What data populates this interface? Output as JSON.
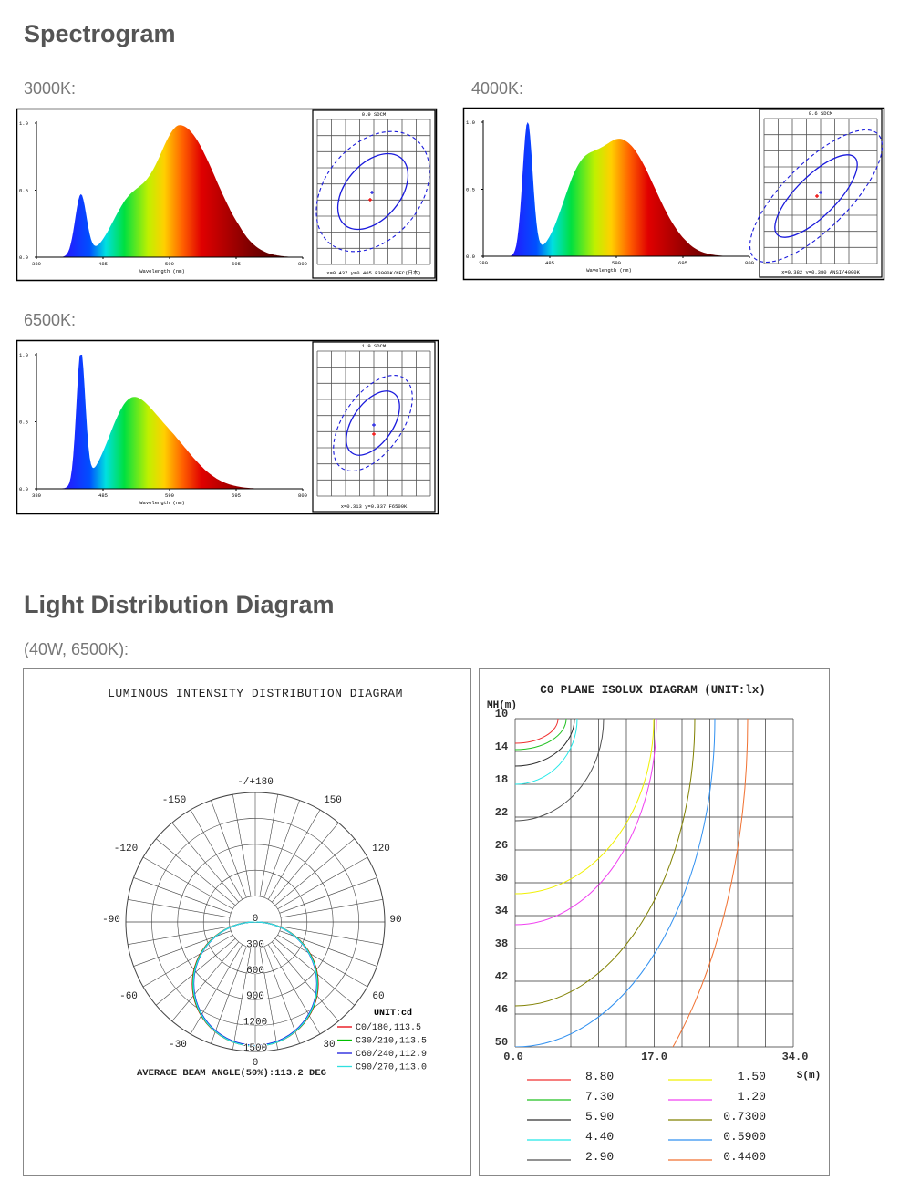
{
  "header": {
    "title": "Spectrogram"
  },
  "spectra": [
    {
      "label": "3000K:",
      "ylabels": [
        "1.0",
        "0.5",
        "0.0"
      ],
      "xlabels": [
        "380",
        "485",
        "590",
        "695",
        "800"
      ],
      "x_axis": "Wavelength (nm)",
      "sdcm": "0.9 SDCM",
      "coords": "x=0.437 y=0.405 F3000K/NEC(日本)"
    },
    {
      "label": "4000K:",
      "ylabels": [
        "1.0",
        "0.5",
        "0.0"
      ],
      "xlabels": [
        "380",
        "485",
        "590",
        "695",
        "800"
      ],
      "x_axis": "Wavelength (nm)",
      "sdcm": "0.6 SDCM",
      "coords": "x=0.382 y=0.380 ANSI/4000K"
    },
    {
      "label": "6500K:",
      "ylabels": [
        "1.0",
        "0.5",
        "0.0"
      ],
      "xlabels": [
        "380",
        "485",
        "590",
        "695",
        "800"
      ],
      "x_axis": "Wavelength (nm)",
      "sdcm": "1.9 SDCM",
      "coords": "x=0.313 y=0.337 F6500K"
    }
  ],
  "distribution": {
    "title": "Light Distribution Diagram",
    "subtitle": "(40W, 6500K):",
    "polar": {
      "title": "LUMINOUS INTENSITY DISTRIBUTION DIAGRAM",
      "angles": [
        "-/+180",
        "-150",
        "150",
        "-120",
        "120",
        "-90",
        "90",
        "-60",
        "60",
        "-30",
        "30",
        "0"
      ],
      "radii": [
        "0",
        "300",
        "600",
        "900",
        "1200",
        "1500"
      ],
      "unit": "UNIT:cd",
      "legend": [
        {
          "label": "C0/180,113.5",
          "color": "#e8000b"
        },
        {
          "label": "C30/210,113.5",
          "color": "#00c000"
        },
        {
          "label": "C60/240,112.9",
          "color": "#1a1adc"
        },
        {
          "label": "C90/270,113.0",
          "color": "#30e0e0"
        }
      ],
      "beam": "AVERAGE BEAM ANGLE(50%):113.2 DEG"
    },
    "isolux": {
      "title": "C0 PLANE ISOLUX DIAGRAM (UNIT:lx)",
      "y_axis": "MH(m)",
      "x_axis": "S(m)",
      "yticks": [
        "10",
        "14",
        "18",
        "22",
        "26",
        "30",
        "34",
        "38",
        "42",
        "46",
        "50"
      ],
      "xticks": [
        "0.0",
        "17.0",
        "34.0"
      ],
      "legend": [
        {
          "label": "8.80",
          "color": "#f03030"
        },
        {
          "label": "7.30",
          "color": "#20c020"
        },
        {
          "label": "5.90",
          "color": "#303030"
        },
        {
          "label": "4.40",
          "color": "#20e8e8"
        },
        {
          "label": "2.90",
          "color": "#505050"
        },
        {
          "label": "1.50",
          "color": "#f0f000"
        },
        {
          "label": "1.20",
          "color": "#f040f0"
        },
        {
          "label": "0.7300",
          "color": "#808000"
        },
        {
          "label": "0.5900",
          "color": "#3090f0"
        },
        {
          "label": "0.4400",
          "color": "#f07030"
        }
      ]
    }
  }
}
